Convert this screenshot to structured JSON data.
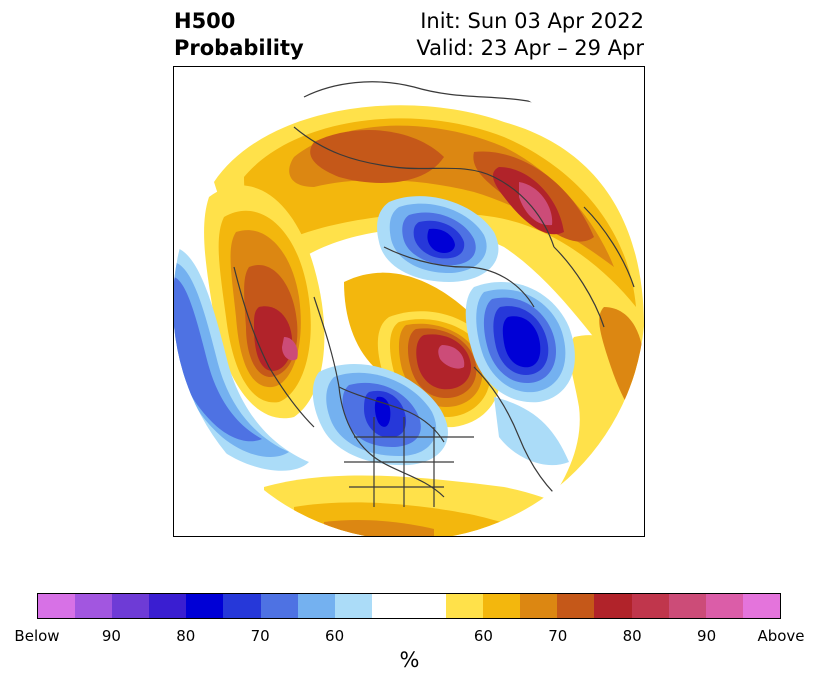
{
  "title": {
    "left_line1": "H500",
    "left_line2": "Probability",
    "right_line1": "Init: Sun 03 Apr 2022",
    "right_line2": "Valid: 23 Apr – 29 Apr"
  },
  "map": {
    "projection": "north-polar-stereographic",
    "below_color": "#2a3ed8",
    "above_color": "#b8232c",
    "features": [
      {
        "type": "above-center",
        "region": "eastern Siberia / Kamchatka",
        "level": "80-90"
      },
      {
        "type": "above-center",
        "region": "Gulf of Alaska / North Pacific",
        "level": "80-90"
      },
      {
        "type": "above-center",
        "region": "Greenland / North Atlantic",
        "level": "80-90"
      },
      {
        "type": "below-center",
        "region": "Arctic Ocean / Laptev Sea",
        "level": "80"
      },
      {
        "type": "below-center",
        "region": "Scandinavia / Northern Europe",
        "level": "80"
      },
      {
        "type": "below-center",
        "region": "central Canada / Hudson Bay",
        "level": "70"
      }
    ]
  },
  "colorbar": {
    "colors": [
      "#d771e6",
      "#a256e0",
      "#6e3bd6",
      "#3a1ed1",
      "#0000d6",
      "#2638d9",
      "#4e72e3",
      "#74b1f0",
      "#abdcf8",
      "#ffffff",
      "#ffffff",
      "#ffe14a",
      "#f3b70d",
      "#dc8712",
      "#c55819",
      "#b1232a",
      "#c0364c",
      "#cc4c78",
      "#db5da8",
      "#e474dc"
    ],
    "tick_labels": [
      "Below",
      "90",
      "80",
      "70",
      "60",
      "60",
      "70",
      "80",
      "90",
      "Above"
    ],
    "unit_label": "%"
  }
}
